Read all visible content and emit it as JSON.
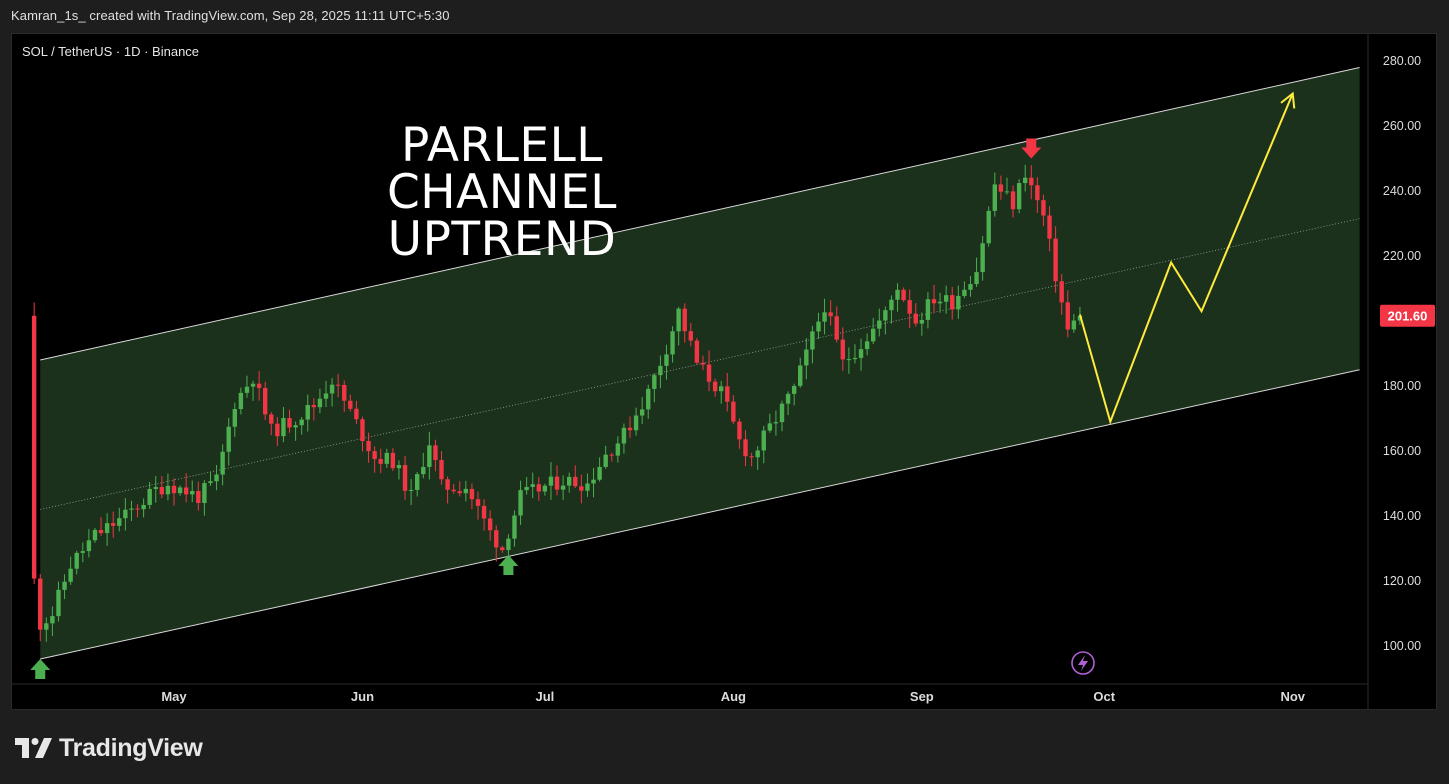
{
  "header": {
    "attribution": "Kamran_1s_ created with TradingView.com, Sep 28, 2025 11:11 UTC+5:30"
  },
  "symbol": {
    "info": "SOL / TetherUS · 1D · Binance"
  },
  "annotation": {
    "line1": "PARLELL CHANNEL",
    "line2": "UPTREND"
  },
  "price_label": {
    "value": "201.60",
    "color": "#f23645"
  },
  "footer": {
    "brand": "TradingView",
    "logo_icon": "tradingview-logo-icon"
  },
  "colors": {
    "up": "#4caf50",
    "down": "#f23645",
    "channel_fill": "#1b311b",
    "channel_line": "#d9d9d9",
    "projection": "#ffeb3b",
    "background": "#000000"
  },
  "chart_data": {
    "type": "candlestick",
    "symbol": "SOL / TetherUS",
    "interval": "1D",
    "exchange": "Binance",
    "ylim": [
      90,
      285
    ],
    "y_ticks": [
      "100.00",
      "120.00",
      "140.00",
      "160.00",
      "180.00",
      "200.00",
      "220.00",
      "240.00",
      "260.00",
      "280.00"
    ],
    "x_ticks": [
      {
        "label": "May",
        "date": "2025-05-01"
      },
      {
        "label": "Jun",
        "date": "2025-06-01"
      },
      {
        "label": "Jul",
        "date": "2025-07-01"
      },
      {
        "label": "Aug",
        "date": "2025-08-01"
      },
      {
        "label": "Sep",
        "date": "2025-09-01"
      },
      {
        "label": "Oct",
        "date": "2025-10-01"
      },
      {
        "label": "Nov",
        "date": "2025-11-01"
      }
    ],
    "last_price": 201.6,
    "close_path": [
      [
        "2025-04-08",
        120
      ],
      [
        "2025-04-09",
        107
      ],
      [
        "2025-04-11",
        110
      ],
      [
        "2025-04-14",
        125
      ],
      [
        "2025-04-18",
        134
      ],
      [
        "2025-04-23",
        140
      ],
      [
        "2025-04-28",
        148
      ],
      [
        "2025-04-30",
        150
      ],
      [
        "2025-05-05",
        146
      ],
      [
        "2025-05-08",
        151
      ],
      [
        "2025-05-11",
        175
      ],
      [
        "2025-05-14",
        183
      ],
      [
        "2025-05-17",
        166
      ],
      [
        "2025-05-21",
        170
      ],
      [
        "2025-05-24",
        174
      ],
      [
        "2025-05-27",
        182
      ],
      [
        "2025-05-30",
        172
      ],
      [
        "2025-06-03",
        158
      ],
      [
        "2025-06-06",
        157
      ],
      [
        "2025-06-09",
        146
      ],
      [
        "2025-06-12",
        163
      ],
      [
        "2025-06-14",
        149
      ],
      [
        "2025-06-18",
        149
      ],
      [
        "2025-06-22",
        135
      ],
      [
        "2025-06-24",
        130
      ],
      [
        "2025-06-27",
        146
      ],
      [
        "2025-07-01",
        149
      ],
      [
        "2025-07-04",
        151
      ],
      [
        "2025-07-08",
        150
      ],
      [
        "2025-07-11",
        159
      ],
      [
        "2025-07-14",
        165
      ],
      [
        "2025-07-18",
        178
      ],
      [
        "2025-07-21",
        192
      ],
      [
        "2025-07-23",
        203
      ],
      [
        "2025-07-26",
        187
      ],
      [
        "2025-07-30",
        178
      ],
      [
        "2025-08-02",
        163
      ],
      [
        "2025-08-04",
        158
      ],
      [
        "2025-08-07",
        167
      ],
      [
        "2025-08-11",
        179
      ],
      [
        "2025-08-14",
        195
      ],
      [
        "2025-08-16",
        205
      ],
      [
        "2025-08-19",
        187
      ],
      [
        "2025-08-22",
        193
      ],
      [
        "2025-08-26",
        202
      ],
      [
        "2025-08-28",
        211
      ],
      [
        "2025-08-31",
        200
      ],
      [
        "2025-09-03",
        207
      ],
      [
        "2025-09-06",
        206
      ],
      [
        "2025-09-10",
        216
      ],
      [
        "2025-09-13",
        242
      ],
      [
        "2025-09-16",
        236
      ],
      [
        "2025-09-18",
        246
      ],
      [
        "2025-09-21",
        232
      ],
      [
        "2025-09-23",
        214
      ],
      [
        "2025-09-25",
        197
      ],
      [
        "2025-09-27",
        201.6
      ]
    ],
    "channel": {
      "upper": [
        [
          "2025-04-09",
          188
        ],
        [
          "2025-11-12",
          278
        ]
      ],
      "lower": [
        [
          "2025-04-09",
          96
        ],
        [
          "2025-11-12",
          185
        ]
      ],
      "middle": [
        [
          "2025-04-09",
          142
        ],
        [
          "2025-11-12",
          231.5
        ]
      ]
    },
    "projection": [
      [
        "2025-09-27",
        202
      ],
      [
        "2025-10-02",
        169
      ],
      [
        "2025-10-12",
        218
      ],
      [
        "2025-10-17",
        203
      ],
      [
        "2025-11-01",
        270
      ]
    ],
    "markers": [
      {
        "type": "arrow-up",
        "date": "2025-04-09",
        "price": 96
      },
      {
        "type": "arrow-up",
        "date": "2025-06-25",
        "price": 128
      },
      {
        "type": "arrow-down",
        "date": "2025-09-19",
        "price": 250
      }
    ]
  }
}
